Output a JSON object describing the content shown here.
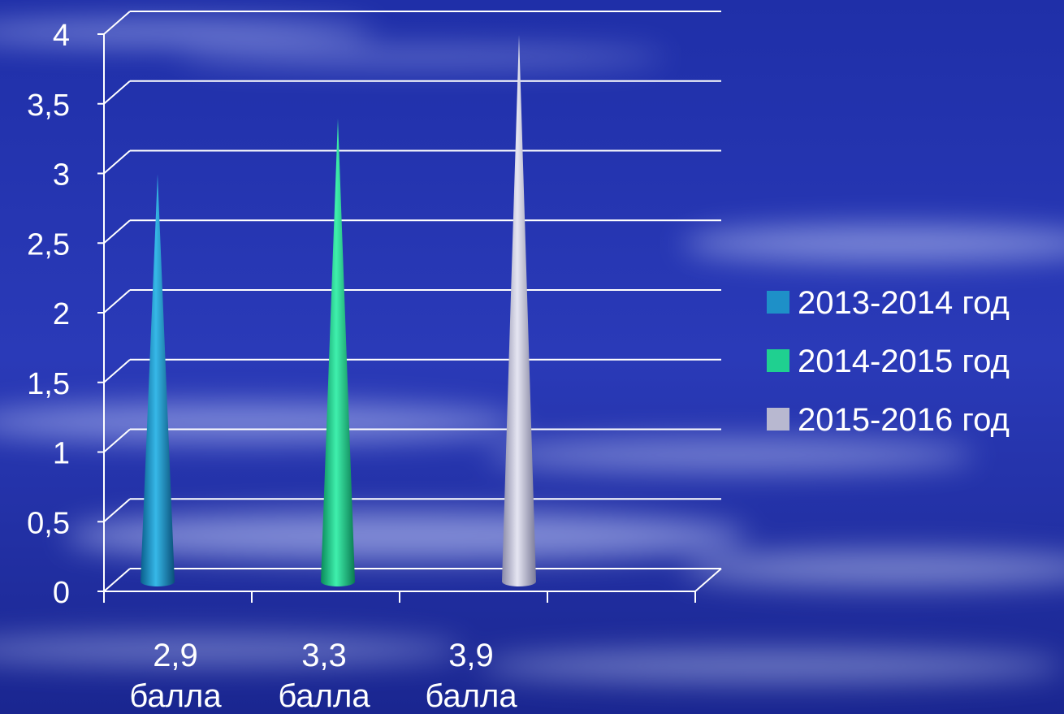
{
  "chart_data": {
    "type": "bar",
    "bar_shape": "cone",
    "categories": [
      "2,9 балла",
      "3,3 балла",
      "3,9 балла"
    ],
    "category_labels": [
      [
        "2,9",
        "балла"
      ],
      [
        "3,3",
        "балла"
      ],
      [
        "3,9",
        "балла"
      ]
    ],
    "series": [
      {
        "name": "2013-2014 год",
        "color": "#1e90c8",
        "values": [
          2.9,
          null,
          null
        ]
      },
      {
        "name": "2014-2015 год",
        "color": "#1fd090",
        "values": [
          null,
          3.3,
          null
        ]
      },
      {
        "name": "2015-2016 год",
        "color": "#b8b8d0",
        "values": [
          null,
          null,
          3.9
        ]
      }
    ],
    "y_ticks": [
      "0",
      "0,5",
      "1",
      "1,5",
      "2",
      "2,5",
      "3",
      "3,5",
      "4"
    ],
    "ylim": [
      0,
      4
    ],
    "grid": true,
    "legend_position": "right",
    "background": "blue sky with clouds"
  }
}
